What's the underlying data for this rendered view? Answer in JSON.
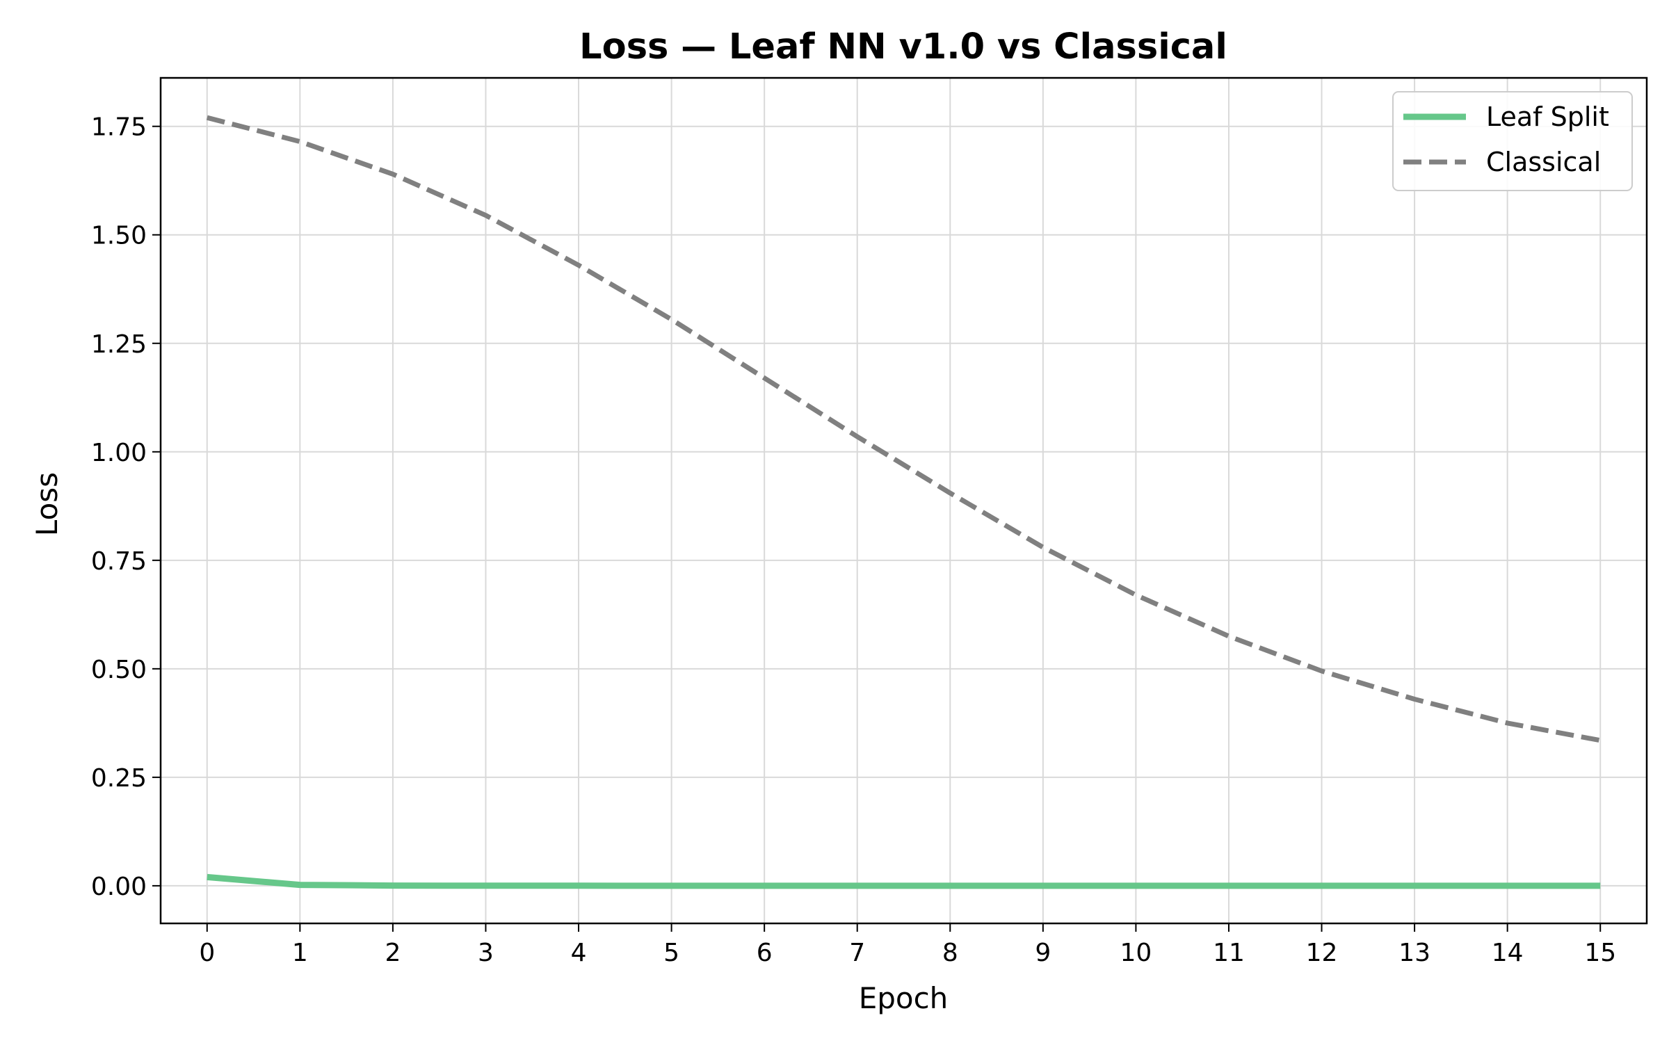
{
  "chart_data": {
    "type": "line",
    "title": "Loss — Leaf NN v1.0 vs Classical",
    "xlabel": "Epoch",
    "ylabel": "Loss",
    "x": [
      0,
      1,
      2,
      3,
      4,
      5,
      6,
      7,
      8,
      9,
      10,
      11,
      12,
      13,
      14,
      15
    ],
    "xlim": [
      -0.5,
      15.5
    ],
    "ylim": [
      -0.0867,
      1.8617
    ],
    "xticks": [
      "0",
      "1",
      "2",
      "3",
      "4",
      "5",
      "6",
      "7",
      "8",
      "9",
      "10",
      "11",
      "12",
      "13",
      "14",
      "15"
    ],
    "yticks": [
      "0.00",
      "0.25",
      "0.50",
      "0.75",
      "1.00",
      "1.25",
      "1.50",
      "1.75"
    ],
    "grid": true,
    "legend_position": "top-right",
    "series": [
      {
        "name": "Leaf Split",
        "color": "#66c78a",
        "style": "solid",
        "values": [
          0.02,
          0.002,
          0.0005,
          0.0002,
          0.0001,
          0.0,
          0.0,
          0.0,
          0.0,
          0.0,
          0.0,
          0.0,
          0.0,
          0.0,
          0.0,
          0.0
        ]
      },
      {
        "name": "Classical",
        "color": "#808080",
        "style": "dashed",
        "values": [
          1.77,
          1.715,
          1.64,
          1.545,
          1.43,
          1.305,
          1.17,
          1.035,
          0.905,
          0.78,
          0.67,
          0.575,
          0.495,
          0.43,
          0.375,
          0.335
        ]
      }
    ]
  }
}
